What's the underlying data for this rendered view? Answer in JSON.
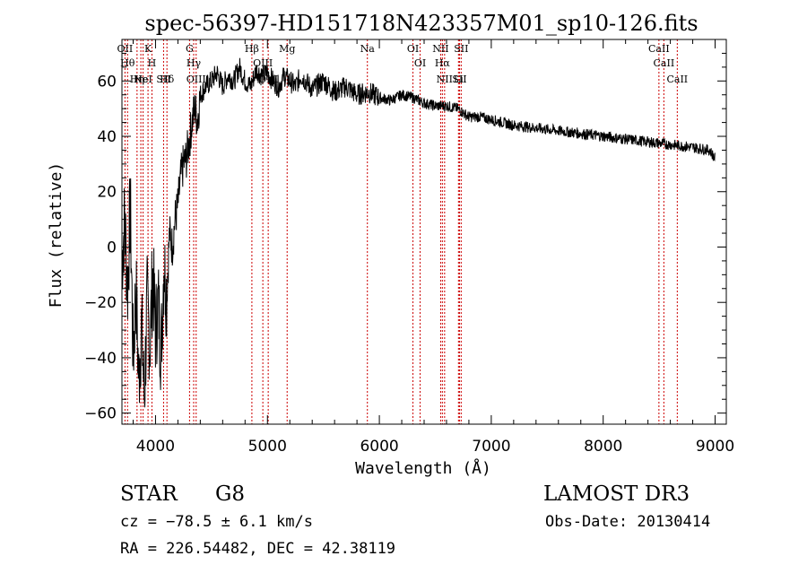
{
  "chart_data": {
    "type": "line",
    "title": "spec-56397-HD151718N423357M01_sp10-126.fits",
    "xlabel": "Wavelength (Å)",
    "ylabel": "Flux (relative)",
    "xlim": [
      3700,
      9100
    ],
    "ylim": [
      -64,
      75
    ],
    "xticks": [
      4000,
      5000,
      6000,
      7000,
      8000,
      9000
    ],
    "xtick_labels": [
      "4000",
      "5000",
      "6000",
      "7000",
      "8000",
      "9000"
    ],
    "yticks": [
      -60,
      -40,
      -20,
      0,
      20,
      40,
      60
    ],
    "ytick_labels": [
      "−60",
      "−40",
      "−20",
      "0",
      "20",
      "40",
      "60"
    ],
    "series": [
      {
        "name": "flux",
        "x": [
          3700,
          3725,
          3750,
          3775,
          3800,
          3825,
          3850,
          3875,
          3900,
          3925,
          3950,
          3975,
          4000,
          4025,
          4050,
          4075,
          4100,
          4125,
          4150,
          4175,
          4200,
          4225,
          4250,
          4275,
          4300,
          4325,
          4350,
          4375,
          4400,
          4450,
          4500,
          4550,
          4600,
          4650,
          4700,
          4750,
          4800,
          4850,
          4900,
          4950,
          5000,
          5050,
          5100,
          5150,
          5200,
          5250,
          5300,
          5400,
          5500,
          5600,
          5700,
          5800,
          5900,
          6000,
          6100,
          6200,
          6300,
          6400,
          6500,
          6600,
          6700,
          6800,
          6900,
          7000,
          7200,
          7400,
          7600,
          7800,
          8000,
          8200,
          8400,
          8600,
          8800,
          8950,
          9000
        ],
        "values": [
          -5,
          10,
          -15,
          15,
          -40,
          -15,
          -48,
          -28,
          -55,
          -20,
          -35,
          -10,
          -30,
          -20,
          -38,
          -5,
          -18,
          5,
          0,
          10,
          15,
          25,
          30,
          32,
          38,
          45,
          50,
          46,
          55,
          58,
          60,
          63,
          58,
          62,
          60,
          65,
          60,
          58,
          64,
          62,
          63,
          60,
          58,
          62,
          60,
          58,
          62,
          57,
          60,
          56,
          58,
          55,
          56,
          54,
          53,
          55,
          54,
          52,
          51,
          51,
          50,
          47,
          47,
          46,
          44,
          43,
          42,
          41,
          40,
          39,
          38,
          37,
          36,
          35,
          32
        ]
      }
    ],
    "line_markers": [
      {
        "wavelength": 3727,
        "label": "OII"
      },
      {
        "wavelength": 3750,
        "label": "Hθ"
      },
      {
        "wavelength": 3835,
        "label": "Hη"
      },
      {
        "wavelength": 3869,
        "label": "Ne"
      },
      {
        "wavelength": 3889,
        "label": "HeI"
      },
      {
        "wavelength": 3933,
        "label": "K"
      },
      {
        "wavelength": 3968,
        "label": "H"
      },
      {
        "wavelength": 4072,
        "label": "SII"
      },
      {
        "wavelength": 4102,
        "label": "Hδ"
      },
      {
        "wavelength": 4304,
        "label": "G"
      },
      {
        "wavelength": 4341,
        "label": "Hγ"
      },
      {
        "wavelength": 4363,
        "label": "OIII"
      },
      {
        "wavelength": 4861,
        "label": "Hβ"
      },
      {
        "wavelength": 4959,
        "label": "OIII"
      },
      {
        "wavelength": 5007,
        "label": "OIII"
      },
      {
        "wavelength": 5176,
        "label": "Mg"
      },
      {
        "wavelength": 5893,
        "label": "Na"
      },
      {
        "wavelength": 6300,
        "label": "OI"
      },
      {
        "wavelength": 6364,
        "label": "OI"
      },
      {
        "wavelength": 6548,
        "label": "NII"
      },
      {
        "wavelength": 6563,
        "label": "Hα"
      },
      {
        "wavelength": 6583,
        "label": "NII"
      },
      {
        "wavelength": 6707,
        "label": "Li"
      },
      {
        "wavelength": 6716,
        "label": "SII"
      },
      {
        "wavelength": 6731,
        "label": "SII"
      },
      {
        "wavelength": 8498,
        "label": "CaII"
      },
      {
        "wavelength": 8542,
        "label": "CaII"
      },
      {
        "wavelength": 8662,
        "label": "CaII"
      }
    ]
  },
  "info": {
    "class_label": "STAR",
    "subclass": "G8",
    "survey": "LAMOST DR3",
    "cz": "cz = −78.5 ± 6.1 km/s",
    "obs_date": "Obs-Date: 20130414",
    "coords": "RA = 226.54482, DEC =  42.38119"
  },
  "colors": {
    "line_marker": "#cc0000",
    "spectrum": "#000000",
    "axis": "#000000"
  }
}
